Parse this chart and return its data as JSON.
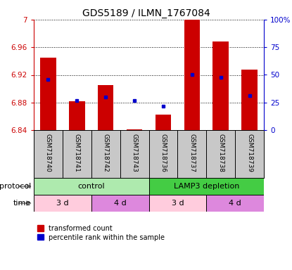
{
  "title": "GDS5189 / ILMN_1767084",
  "samples": [
    "GSM718740",
    "GSM718741",
    "GSM718742",
    "GSM718743",
    "GSM718736",
    "GSM718737",
    "GSM718738",
    "GSM718739"
  ],
  "red_bar_bottom": 6.84,
  "red_bar_tops": [
    6.945,
    6.882,
    6.905,
    6.841,
    6.862,
    7.0,
    6.968,
    6.928
  ],
  "blue_dot_values": [
    6.913,
    6.883,
    6.888,
    6.883,
    6.875,
    6.921,
    6.916,
    6.89
  ],
  "ylim_left": [
    6.84,
    7.0
  ],
  "ylim_right": [
    0,
    100
  ],
  "yticks_left": [
    6.84,
    6.88,
    6.92,
    6.96,
    7.0
  ],
  "yticks_right": [
    0,
    25,
    50,
    75,
    100
  ],
  "ytick_labels_left": [
    "6.84",
    "6.88",
    "6.92",
    "6.96",
    "7"
  ],
  "ytick_labels_right": [
    "0",
    "25",
    "50",
    "75",
    "100%"
  ],
  "protocol_groups": [
    {
      "label": "control",
      "color": "#aeeaae",
      "span": [
        0,
        4
      ]
    },
    {
      "label": "LAMP3 depletion",
      "color": "#44cc44",
      "span": [
        4,
        8
      ]
    }
  ],
  "time_groups": [
    {
      "label": "3 d",
      "color": "#ffccdd",
      "span": [
        0,
        2
      ]
    },
    {
      "label": "4 d",
      "color": "#dd88dd",
      "span": [
        2,
        4
      ]
    },
    {
      "label": "3 d",
      "color": "#ffccdd",
      "span": [
        4,
        6
      ]
    },
    {
      "label": "4 d",
      "color": "#dd88dd",
      "span": [
        6,
        8
      ]
    }
  ],
  "bar_color": "#cc0000",
  "dot_color": "#0000cc",
  "bar_width": 0.55,
  "left_axis_color": "#cc0000",
  "right_axis_color": "#0000cc",
  "legend_items": [
    {
      "label": "transformed count",
      "color": "#cc0000"
    },
    {
      "label": "percentile rank within the sample",
      "color": "#0000cc"
    }
  ]
}
